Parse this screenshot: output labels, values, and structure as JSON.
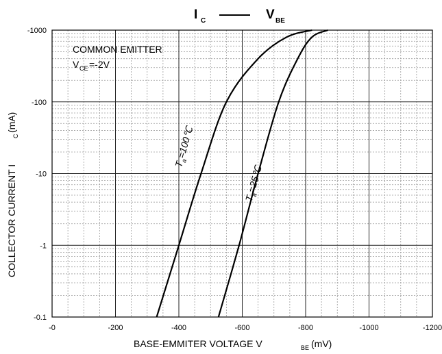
{
  "chart_data": {
    "type": "line",
    "title": {
      "left": "I",
      "left_sub": "C",
      "right": "V",
      "right_sub": "BE"
    },
    "annotation": {
      "line1": "COMMON EMITTER",
      "line2_main": "V",
      "line2_sub": "CE",
      "line2_rest": "=-2V"
    },
    "xlabel": {
      "main": "BASE-EMMITER VOLTAGE   V",
      "sub": "BE",
      "unit": " (mV)"
    },
    "ylabel": {
      "main": "COLLECTOR CURRENT   I",
      "sub": "C",
      "unit": "  (mA)"
    },
    "x_ticks": [
      {
        "value": 0,
        "label": "-0"
      },
      {
        "value": 200,
        "label": "-200"
      },
      {
        "value": 400,
        "label": "-400"
      },
      {
        "value": 600,
        "label": "-600"
      },
      {
        "value": 800,
        "label": "-800"
      },
      {
        "value": 1000,
        "label": "-1000"
      },
      {
        "value": 1200,
        "label": "-1200"
      }
    ],
    "y_ticks": [
      {
        "value": 0.1,
        "label": "-0.1"
      },
      {
        "value": 1,
        "label": "-1"
      },
      {
        "value": 10,
        "label": "-10"
      },
      {
        "value": 100,
        "label": "-100"
      },
      {
        "value": 1000,
        "label": "-1000"
      }
    ],
    "xlim": [
      0,
      1200
    ],
    "ylim": [
      0.1,
      1000
    ],
    "y_scale": "log",
    "grid": true,
    "series": [
      {
        "name": "Ta=100℃",
        "label": {
          "main": "T",
          "sub": "a",
          "rest": "=100℃"
        },
        "points": [
          {
            "x": 330,
            "y": 0.1
          },
          {
            "x": 400,
            "y": 1
          },
          {
            "x": 470,
            "y": 10
          },
          {
            "x": 550,
            "y": 100
          },
          {
            "x": 650,
            "y": 400
          },
          {
            "x": 740,
            "y": 800
          },
          {
            "x": 820,
            "y": 1000
          }
        ]
      },
      {
        "name": "Ta=25℃",
        "label": {
          "main": "T",
          "sub": "a",
          "rest": "=25℃"
        },
        "points": [
          {
            "x": 525,
            "y": 0.1
          },
          {
            "x": 590,
            "y": 1
          },
          {
            "x": 650,
            "y": 10
          },
          {
            "x": 715,
            "y": 100
          },
          {
            "x": 775,
            "y": 400
          },
          {
            "x": 820,
            "y": 800
          },
          {
            "x": 870,
            "y": 1000
          }
        ]
      }
    ]
  }
}
